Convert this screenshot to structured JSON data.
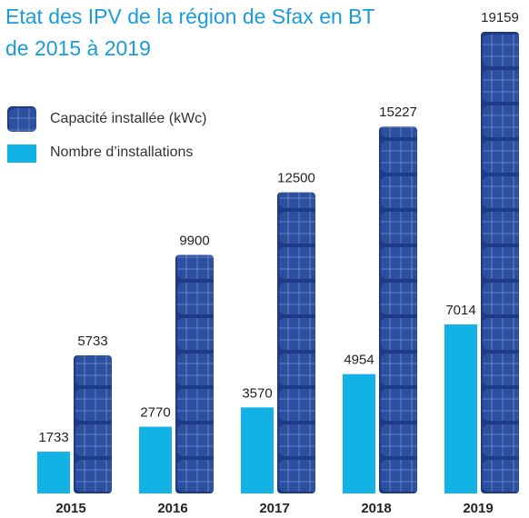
{
  "chart_data": {
    "type": "bar",
    "title": [
      "Etat des IPV de la région de Sfax en BT",
      "de 2015 à 2019"
    ],
    "categories": [
      "2015",
      "2016",
      "2017",
      "2018",
      "2019"
    ],
    "series": [
      {
        "name": "Nombre d’installations",
        "color": "#12b1e6",
        "values": [
          1733,
          2770,
          3570,
          4954,
          7014
        ]
      },
      {
        "name": "Capacité installée (kWc)",
        "color": "#2d4f9f",
        "values": [
          5733,
          9900,
          12500,
          15227,
          19159
        ]
      }
    ]
  }
}
